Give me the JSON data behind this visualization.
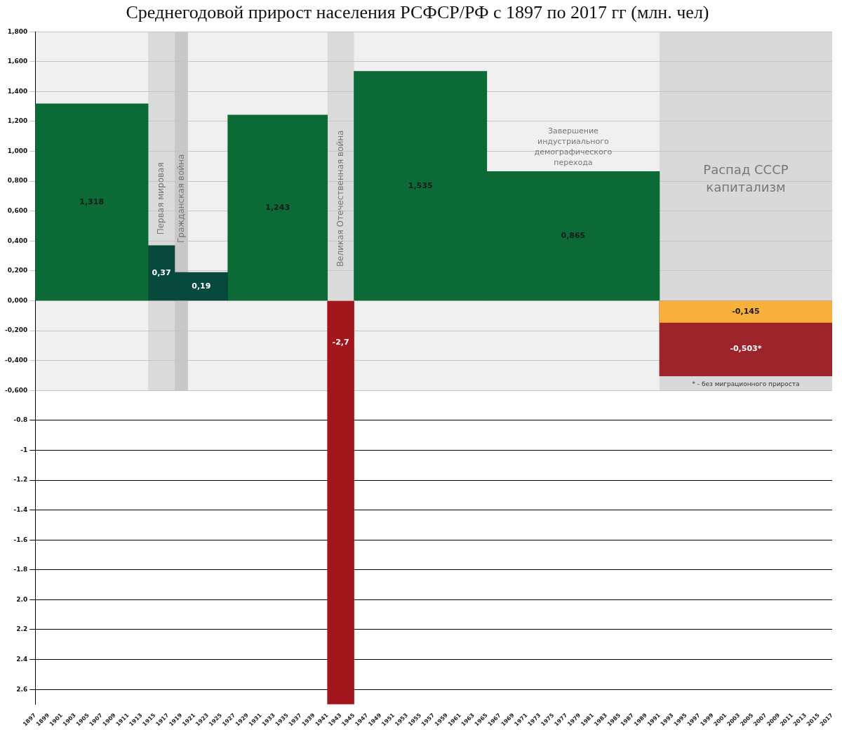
{
  "chart_data": {
    "type": "histogram",
    "title": "Среднегодовой прирост населения РСФСР/РФ с 1897 по 2017 гг (млн. чел)",
    "bins": [
      1897,
      1914,
      1918,
      1926,
      1941,
      1945,
      1965,
      1991,
      2017
    ],
    "series": [
      {
        "colors": [
          "#0b6a36",
          "#074a3c",
          "#074a3c",
          "#0b6a36",
          "#a3161c",
          "#0b6a36",
          "#0b6a36",
          "#9e242c"
        ],
        "values": [
          1.318,
          0.37,
          0.19,
          1.243,
          -2.7,
          1.535,
          0.865,
          -0.503
        ],
        "value_labels": [
          "1,318",
          "0,37",
          "0,19",
          "1,243",
          "-2,7",
          "1,535",
          "0,865",
          "-0,503*"
        ]
      },
      {
        "color": "#f8b03c",
        "values": [
          null,
          null,
          null,
          null,
          null,
          null,
          null,
          -0.145
        ],
        "value_labels": [
          null,
          null,
          null,
          null,
          null,
          null,
          null,
          "-0,145"
        ]
      }
    ],
    "xlim": [
      1897,
      2017
    ],
    "xticks": [
      1897,
      1899,
      1901,
      1903,
      1905,
      1907,
      1909,
      1911,
      1913,
      1915,
      1917,
      1919,
      1921,
      1923,
      1925,
      1927,
      1929,
      1931,
      1933,
      1935,
      1937,
      1939,
      1941,
      1943,
      1945,
      1947,
      1949,
      1951,
      1953,
      1955,
      1957,
      1959,
      1961,
      1963,
      1965,
      1967,
      1969,
      1971,
      1973,
      1975,
      1977,
      1979,
      1981,
      1983,
      1985,
      1987,
      1989,
      1991,
      1993,
      1995,
      1997,
      1999,
      2001,
      2003,
      2005,
      2007,
      2009,
      2011,
      2013,
      2015,
      2017
    ],
    "ylim": [
      -2.7,
      1.8
    ],
    "yticks": [
      {
        "value": 1.8,
        "label": "1,800"
      },
      {
        "value": 1.6,
        "label": "1,600"
      },
      {
        "value": 1.4,
        "label": "1,400"
      },
      {
        "value": 1.2,
        "label": "1,200"
      },
      {
        "value": 1.0,
        "label": "1,000"
      },
      {
        "value": 0.8,
        "label": "0,800"
      },
      {
        "value": 0.6,
        "label": "0,600"
      },
      {
        "value": 0.4,
        "label": "0,400"
      },
      {
        "value": 0.2,
        "label": "0,200"
      },
      {
        "value": 0,
        "label": "0,000"
      },
      {
        "value": -0.2,
        "label": "-0,200"
      },
      {
        "value": -0.4,
        "label": "-0,400"
      },
      {
        "value": -0.6,
        "label": "-0,600"
      },
      -0.8,
      -1,
      -1.2,
      -1.4,
      -1.6,
      -1.8,
      {
        "value": -2.0,
        "label": "2.0"
      },
      {
        "value": -2.2,
        "label": "2.2"
      },
      {
        "value": -2.4,
        "label": "2.4"
      },
      {
        "value": -2.6,
        "label": "2.6"
      }
    ],
    "grid": "y",
    "legend": false,
    "bands": [
      {
        "axis": "y",
        "from": -0.6,
        "to": 1.8,
        "color": "#f0f0f0"
      },
      {
        "axis": "x",
        "from": 1914,
        "to": 1918,
        "label": "Первая мировая",
        "color": "#dadada"
      },
      {
        "axis": "x",
        "from": 1918,
        "to": 1920,
        "label": "Гражданская война",
        "color": "#c8c8c8"
      },
      {
        "axis": "x",
        "from": 1941,
        "to": 1945,
        "label": "Великая Отечественная война",
        "color": "#dadada"
      },
      {
        "axis": "x",
        "from": 1991,
        "to": 2017,
        "label": "Распад СССР\nкапитализм",
        "color": "#d9d9d9"
      }
    ],
    "annotations": [
      "Завершение\nиндустриального\nдемографического\nперехода",
      "* - без миграционного прироста"
    ]
  }
}
